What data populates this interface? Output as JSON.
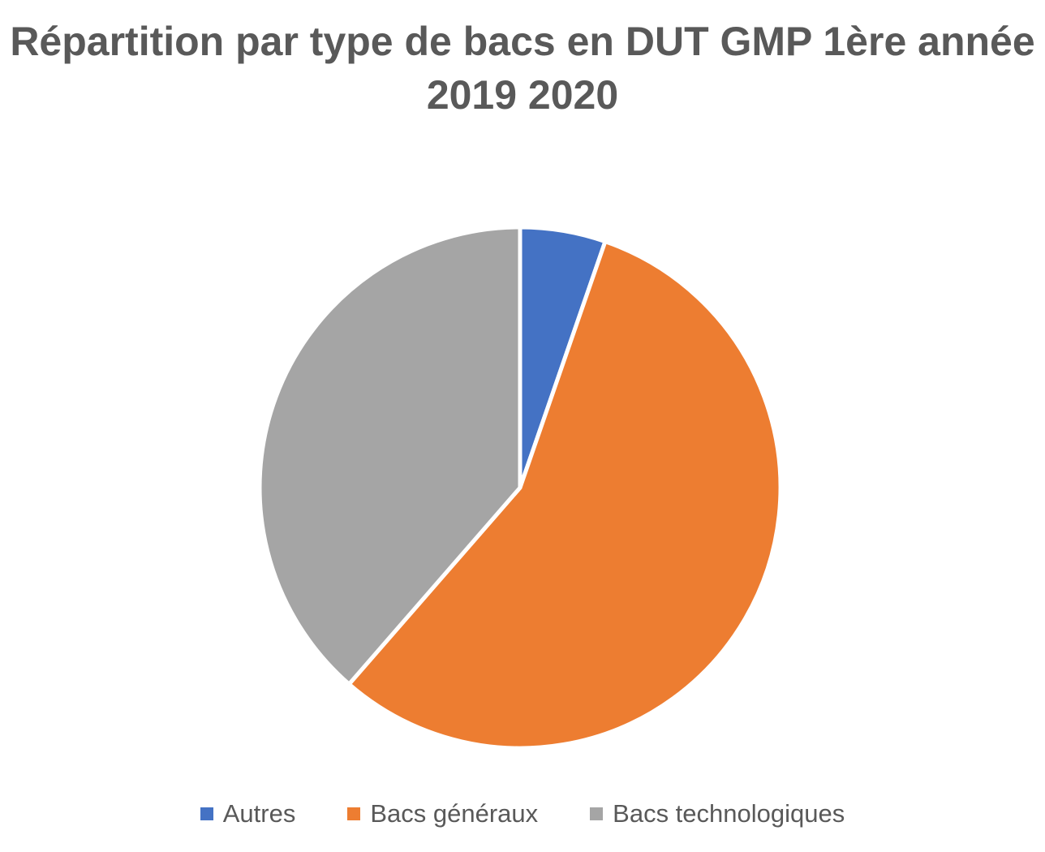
{
  "chart_data": {
    "type": "pie",
    "title_lines": [
      "Répartition par type de bacs en DUT GMP 1ère année",
      "2019 2020"
    ],
    "legend_position": "bottom",
    "categories": [
      "Autres",
      "Bacs généraux",
      "Bacs technologiques"
    ],
    "values": [
      5.3,
      56.1,
      38.6
    ],
    "colors": [
      "#4472C4",
      "#ED7D31",
      "#A5A5A5"
    ]
  }
}
